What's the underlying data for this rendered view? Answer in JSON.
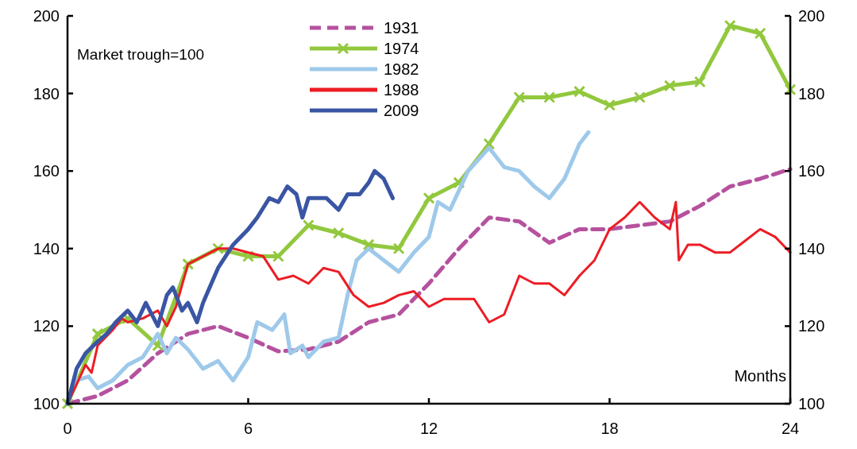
{
  "chart_data": {
    "type": "line",
    "xlabel": "Months",
    "annotations": [
      "Market trough=100"
    ],
    "xlim": [
      0,
      24
    ],
    "xticks": [
      0,
      6,
      12,
      18,
      24
    ],
    "ylim": [
      100,
      200
    ],
    "yticks": [
      100,
      120,
      140,
      160,
      180,
      200
    ],
    "y2lim": [
      100,
      200
    ],
    "y2ticks": [
      100,
      120,
      140,
      160,
      180,
      200
    ],
    "legend": "top left",
    "series": [
      {
        "name": "1931",
        "color": "#b5519e",
        "line_style": "dashed",
        "marker": "none",
        "x": [
          0,
          1,
          2,
          3,
          4,
          5,
          6,
          7,
          8,
          9,
          10,
          11,
          12,
          13,
          14,
          15,
          16,
          17,
          18,
          19,
          20,
          21,
          22,
          23,
          24
        ],
        "values": [
          100,
          102,
          106,
          113,
          118,
          120,
          117,
          113.5,
          114,
          116,
          121,
          123,
          131,
          140,
          148,
          147,
          141.5,
          145,
          145,
          146,
          147,
          151,
          156,
          158,
          160.5
        ]
      },
      {
        "name": "1974",
        "color": "#92c83e",
        "line_style": "solid",
        "marker": "cross",
        "x": [
          0,
          1,
          2,
          3,
          4,
          5,
          6,
          7,
          8,
          9,
          10,
          11,
          12,
          13,
          14,
          15,
          16,
          17,
          18,
          19,
          20,
          21,
          22,
          23,
          24
        ],
        "values": [
          100,
          118,
          122,
          115,
          136,
          140,
          138,
          138,
          146,
          144,
          141,
          140,
          153,
          157,
          167,
          179,
          179,
          180.5,
          177,
          179,
          182,
          183,
          197.5,
          195.5,
          181
        ]
      },
      {
        "name": "1982",
        "color": "#9ec9ea",
        "line_style": "solid",
        "marker": "none",
        "x": [
          0,
          0.3,
          0.7,
          1,
          1.5,
          2,
          2.5,
          3,
          3.3,
          3.6,
          4,
          4.5,
          5,
          5.5,
          6,
          6.3,
          6.8,
          7.2,
          7.4,
          7.8,
          8,
          8.5,
          9,
          9.3,
          9.6,
          10,
          10.5,
          11,
          11.5,
          12,
          12.3,
          12.7,
          13,
          13.3,
          14,
          14.5,
          15,
          15.5,
          16,
          16.5,
          17,
          17.3
        ],
        "values": [
          100,
          106,
          107,
          104,
          106,
          110,
          112,
          118,
          113,
          117,
          114,
          109,
          111,
          106,
          112,
          121,
          119,
          123,
          113,
          115,
          112,
          116,
          117,
          128,
          137,
          140,
          137,
          134,
          139,
          143,
          152,
          150,
          155,
          160,
          166,
          161,
          160,
          156,
          153,
          158,
          167,
          170
        ]
      },
      {
        "name": "1988",
        "color": "#ed1c24",
        "line_style": "solid",
        "marker": "none",
        "x": [
          0,
          0.3,
          0.6,
          0.8,
          1,
          1.5,
          1.8,
          2,
          2.5,
          3,
          3.3,
          3.6,
          4,
          4.5,
          5,
          5.5,
          6,
          6.5,
          7,
          7.5,
          8,
          8.5,
          9,
          9.5,
          10,
          10.5,
          11,
          11.5,
          12,
          12.5,
          13,
          13.5,
          14,
          14.5,
          15,
          15.5,
          16,
          16.5,
          17,
          17.5,
          18,
          18.5,
          19,
          19.5,
          20,
          20.2,
          20.3,
          20.6,
          21,
          21.5,
          22,
          22.5,
          23,
          23.5,
          24
        ],
        "values": [
          100,
          105,
          110,
          108,
          115,
          119,
          122,
          121,
          122,
          124,
          120,
          125,
          136,
          138,
          140,
          140,
          139,
          138,
          132,
          133,
          131,
          135,
          134,
          128,
          125,
          126,
          128,
          129,
          125,
          127,
          127,
          127,
          121,
          123,
          133,
          131,
          131,
          128,
          133,
          137,
          145,
          148,
          152,
          148,
          145,
          152,
          137,
          141,
          141,
          139,
          139,
          142,
          145,
          143,
          139
        ]
      },
      {
        "name": "2009",
        "color": "#3a55a4",
        "line_style": "solid",
        "marker": "none",
        "x": [
          0,
          0.3,
          0.6,
          1,
          1.3,
          1.6,
          2,
          2.3,
          2.6,
          3,
          3.3,
          3.5,
          3.8,
          4,
          4.3,
          4.5,
          5,
          5.5,
          6,
          6.3,
          6.7,
          7,
          7.3,
          7.6,
          7.8,
          8,
          8.3,
          8.6,
          9,
          9.3,
          9.7,
          10,
          10.2,
          10.5,
          10.8
        ],
        "values": [
          100,
          109,
          113,
          116,
          118,
          121,
          124,
          121,
          126,
          120,
          128,
          130,
          124,
          126,
          121,
          126,
          135,
          141,
          145,
          148,
          153,
          152,
          156,
          154,
          148,
          153,
          153,
          153,
          150,
          154,
          154,
          157,
          160,
          158,
          153
        ]
      }
    ]
  }
}
